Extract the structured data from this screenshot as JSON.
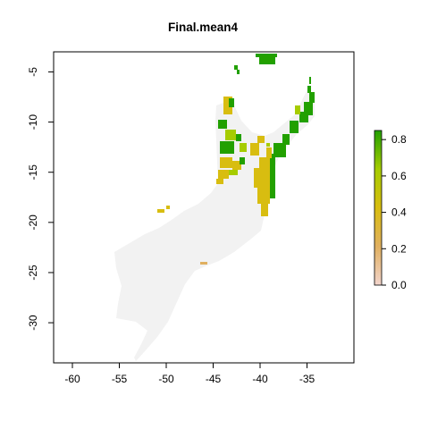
{
  "chart_data": {
    "type": "raster-map",
    "title": "Final.mean4",
    "xlim": [
      -62,
      -30
    ],
    "ylim": [
      -34,
      -3
    ],
    "x_ticks": [
      -60,
      -55,
      -50,
      -45,
      -40,
      -35
    ],
    "x_tick_labels": [
      "-60",
      "-55",
      "-50",
      "-45",
      "-40",
      "-35"
    ],
    "y_ticks": [
      -5,
      -10,
      -15,
      -20,
      -25,
      -30
    ],
    "y_tick_labels": [
      "-5",
      "-10",
      "-15",
      "-20",
      "-25",
      "-30"
    ],
    "legend": {
      "placement": "right",
      "range": [
        0,
        0.85
      ],
      "ticks": [
        0.0,
        0.2,
        0.4,
        0.6,
        0.8
      ],
      "tick_labels": [
        "0.0",
        "0.2",
        "0.4",
        "0.6",
        "0.8"
      ],
      "colors": [
        "#f2d4cc",
        "#e0b060",
        "#d8bd10",
        "#a6cc00",
        "#22a000"
      ]
    },
    "background_color": "#f2f2f2"
  }
}
